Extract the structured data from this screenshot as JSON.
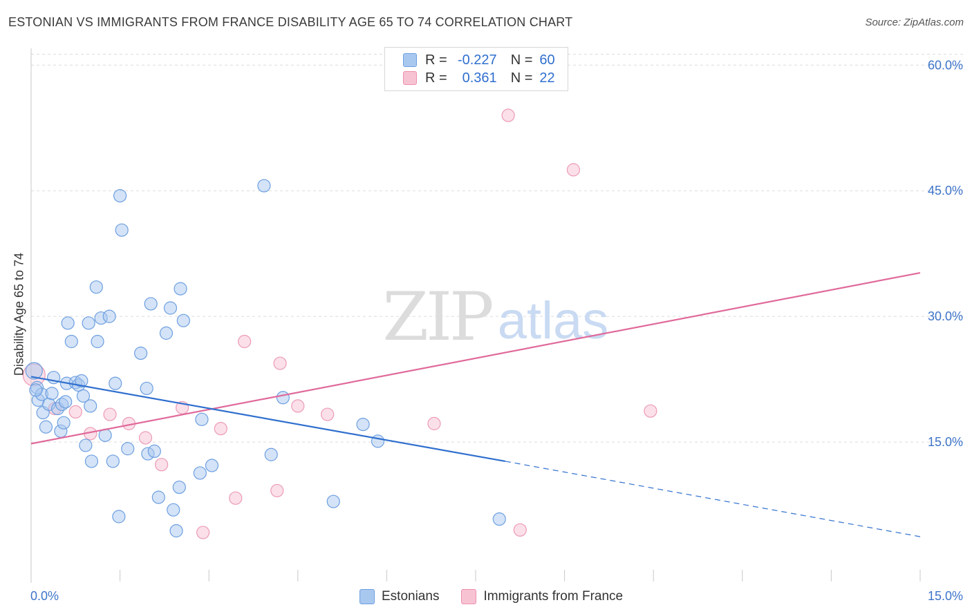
{
  "header": {
    "title": "ESTONIAN VS IMMIGRANTS FROM FRANCE DISABILITY AGE 65 TO 74 CORRELATION CHART",
    "source": "Source: ZipAtlas.com"
  },
  "watermark": {
    "zip": "ZIP",
    "atlas": "atlas"
  },
  "legend": {
    "rows": [
      {
        "r_label": "R =",
        "r_value": "-0.227",
        "n_label": "N =",
        "n_value": "60",
        "color": "#a9c8f0",
        "border": "#6d9fe0"
      },
      {
        "r_label": "R =",
        "r_value": "0.361",
        "n_label": "N =",
        "n_value": "22",
        "color": "#f7c3d3",
        "border": "#ec8fab"
      }
    ]
  },
  "bottom_legend": [
    {
      "label": "Estonians",
      "color": "#a9c8f0",
      "border": "#6d9fe0"
    },
    {
      "label": "Immigrants from France",
      "color": "#f7c3d3",
      "border": "#ec8fab"
    }
  ],
  "chart_data": {
    "type": "scatter",
    "title": "ESTONIAN VS IMMIGRANTS FROM FRANCE DISABILITY AGE 65 TO 74 CORRELATION CHART",
    "ylabel": "Disability Age 65 to 74",
    "xlim": [
      0,
      15
    ],
    "ylim": [
      0,
      62
    ],
    "x_tick_labels": [
      "0.0%",
      "15.0%"
    ],
    "y_ticks": [
      15,
      30,
      45,
      60
    ],
    "y_tick_labels": [
      "15.0%",
      "30.0%",
      "45.0%",
      "60.0%"
    ],
    "grid": true,
    "colors": {
      "estonians": "#2f6fce",
      "france": "#e0699a",
      "tick_label": "#3d74c8"
    },
    "series": [
      {
        "name": "Estonians",
        "points": [
          [
            0.05,
            23.5
          ],
          [
            0.1,
            21.5
          ],
          [
            0.12,
            20
          ],
          [
            0.18,
            20.7
          ],
          [
            0.2,
            18.5
          ],
          [
            0.25,
            16.8
          ],
          [
            0.3,
            19.5
          ],
          [
            0.35,
            20.8
          ],
          [
            0.38,
            22.7
          ],
          [
            0.45,
            19
          ],
          [
            0.5,
            16.3
          ],
          [
            0.52,
            19.5
          ],
          [
            0.55,
            17.3
          ],
          [
            0.58,
            19.8
          ],
          [
            0.6,
            22
          ],
          [
            0.62,
            29.2
          ],
          [
            0.68,
            27
          ],
          [
            0.75,
            22.1
          ],
          [
            0.8,
            21.8
          ],
          [
            0.85,
            22.3
          ],
          [
            0.88,
            20.5
          ],
          [
            0.92,
            14.6
          ],
          [
            0.97,
            29.2
          ],
          [
            1.0,
            19.3
          ],
          [
            1.02,
            12.7
          ],
          [
            1.1,
            33.5
          ],
          [
            1.12,
            27
          ],
          [
            1.18,
            29.8
          ],
          [
            1.25,
            15.8
          ],
          [
            1.32,
            30
          ],
          [
            1.38,
            12.7
          ],
          [
            1.42,
            22
          ],
          [
            1.48,
            6.1
          ],
          [
            1.5,
            44.4
          ],
          [
            1.53,
            40.3
          ],
          [
            1.63,
            14.2
          ],
          [
            1.85,
            25.6
          ],
          [
            1.95,
            21.4
          ],
          [
            1.97,
            13.6
          ],
          [
            2.02,
            31.5
          ],
          [
            2.08,
            13.9
          ],
          [
            2.15,
            8.4
          ],
          [
            2.28,
            28
          ],
          [
            2.35,
            31
          ],
          [
            2.4,
            6.9
          ],
          [
            2.45,
            4.4
          ],
          [
            2.5,
            9.6
          ],
          [
            2.52,
            33.3
          ],
          [
            2.57,
            29.5
          ],
          [
            2.85,
            11.3
          ],
          [
            2.88,
            17.7
          ],
          [
            3.05,
            12.2
          ],
          [
            3.93,
            45.6
          ],
          [
            4.05,
            13.5
          ],
          [
            4.25,
            20.3
          ],
          [
            5.1,
            7.9
          ],
          [
            5.6,
            17.1
          ],
          [
            5.85,
            15.1
          ],
          [
            7.9,
            5.8
          ],
          [
            0.08,
            21.2
          ]
        ]
      },
      {
        "name": "Immigrants from France",
        "points": [
          [
            0.05,
            23
          ],
          [
            0.4,
            19
          ],
          [
            0.75,
            18.6
          ],
          [
            1.0,
            16
          ],
          [
            1.33,
            18.3
          ],
          [
            1.65,
            17.2
          ],
          [
            1.93,
            15.5
          ],
          [
            2.2,
            12.3
          ],
          [
            2.55,
            19.1
          ],
          [
            2.9,
            4.2
          ],
          [
            3.2,
            16.6
          ],
          [
            3.45,
            8.3
          ],
          [
            3.6,
            27
          ],
          [
            4.15,
            9.2
          ],
          [
            4.2,
            24.4
          ],
          [
            4.5,
            19.3
          ],
          [
            5.0,
            18.3
          ],
          [
            6.8,
            17.2
          ],
          [
            8.05,
            54
          ],
          [
            8.25,
            4.5
          ],
          [
            9.15,
            47.5
          ],
          [
            10.45,
            18.7
          ]
        ]
      }
    ],
    "trend_lines": [
      {
        "series": "Estonians",
        "from": [
          0,
          22.8
        ],
        "to": [
          8.0,
          12.7
        ],
        "dashed_to": [
          15,
          3.7
        ]
      },
      {
        "series": "Immigrants from France",
        "from": [
          0,
          14.8
        ],
        "to": [
          15,
          35.2
        ]
      }
    ]
  }
}
